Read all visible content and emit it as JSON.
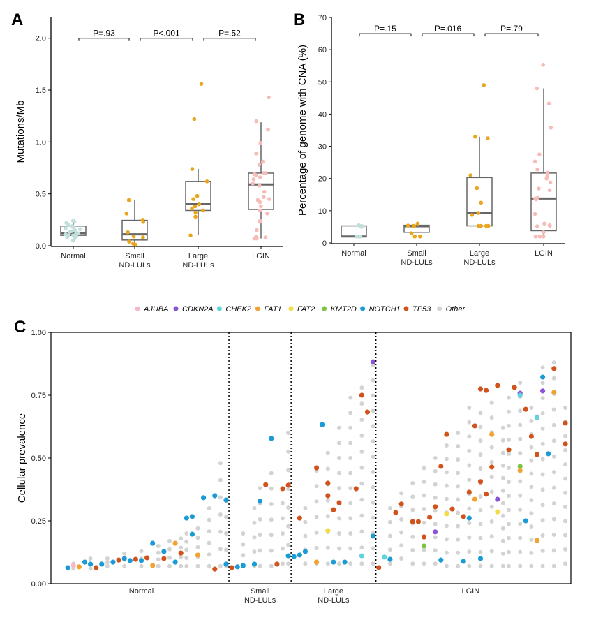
{
  "chart_data": [
    {
      "panel": "A",
      "type": "box",
      "ylabel": "Mutations/Mb",
      "ylim": [
        0,
        2.2
      ],
      "yticks": [
        0,
        0.5,
        1.0,
        1.5,
        2.0
      ],
      "ytick_labels": [
        "0.0",
        "0.5",
        "1.0",
        "1.5",
        "2.0"
      ],
      "categories": [
        "Normal",
        "Small\nND-LULs",
        "Large\nND-LULs",
        "LGIN"
      ],
      "pvalues": [
        "P=.93",
        "P<.001",
        "P=.52"
      ],
      "pvalue_y": 2.0,
      "colors": [
        "#c3dfdb",
        "#e9a51c",
        "#e9a51c",
        "#f6bcb8"
      ],
      "boxes": [
        {
          "lo": 0.06,
          "q1": 0.1,
          "med": 0.12,
          "q3": 0.19,
          "hi": 0.24
        },
        {
          "lo": 0.01,
          "q1": 0.055,
          "med": 0.11,
          "q3": 0.245,
          "hi": 0.44
        },
        {
          "lo": 0.1,
          "q1": 0.34,
          "med": 0.4,
          "q3": 0.62,
          "hi": 0.74
        },
        {
          "lo": 0.07,
          "q1": 0.35,
          "med": 0.59,
          "q3": 0.7,
          "hi": 1.19
        }
      ],
      "points": [
        [
          0.24,
          0.23,
          0.22,
          0.2,
          0.19,
          0.18,
          0.17,
          0.16,
          0.15,
          0.14,
          0.13,
          0.12,
          0.12,
          0.11,
          0.1,
          0.1,
          0.09,
          0.08,
          0.07,
          0.05
        ],
        [
          0.44,
          0.31,
          0.25,
          0.23,
          0.13,
          0.09,
          0.08,
          0.04,
          0.02,
          0.01
        ],
        [
          1.56,
          1.22,
          0.74,
          0.62,
          0.48,
          0.45,
          0.4,
          0.38,
          0.36,
          0.34,
          0.32,
          0.28,
          0.1
        ],
        [
          1.43,
          1.2,
          1.12,
          0.99,
          0.89,
          0.81,
          0.78,
          0.7,
          0.7,
          0.69,
          0.68,
          0.66,
          0.64,
          0.6,
          0.58,
          0.52,
          0.47,
          0.45,
          0.44,
          0.42,
          0.38,
          0.34,
          0.31,
          0.24,
          0.23,
          0.15,
          0.09,
          0.08,
          0.07,
          0.07
        ]
      ]
    },
    {
      "panel": "B",
      "type": "box",
      "ylabel": "Percentage of genome with CNA (%)",
      "ylim": [
        0,
        70
      ],
      "yticks": [
        0,
        10,
        20,
        30,
        40,
        50,
        60,
        70
      ],
      "ytick_labels": [
        "0",
        "10",
        "20",
        "30",
        "40",
        "50",
        "60",
        "70"
      ],
      "categories": [
        "Normal",
        "Small\nND-LULs",
        "Large\nND-LULs",
        "LGIN"
      ],
      "pvalues": [
        "P=.15",
        "P=.016",
        "P=.79"
      ],
      "pvalue_y": 65,
      "colors": [
        "#c3dfdb",
        "#e9a51c",
        "#e9a51c",
        "#f6bcb8"
      ],
      "boxes": [
        {
          "lo": 2,
          "q1": 2,
          "med": 2,
          "q3": 5.3,
          "hi": 5.3
        },
        {
          "lo": 3.3,
          "q1": 3.3,
          "med": 5.2,
          "q3": 5.5,
          "hi": 5.5
        },
        {
          "lo": 5.3,
          "q1": 5.3,
          "med": 9.2,
          "q3": 20.3,
          "hi": 33
        },
        {
          "lo": 2,
          "q1": 3.8,
          "med": 13.8,
          "q3": 21.7,
          "hi": 48
        }
      ],
      "points": [
        [
          5.5,
          5.3,
          5.2,
          5,
          2,
          2,
          2
        ],
        [
          6,
          5.4,
          5.3,
          5.2,
          3,
          2,
          2
        ],
        [
          49,
          33,
          32.5,
          21,
          17,
          12.5,
          9.3,
          8.7,
          5.3,
          5.3,
          5.3,
          5.3
        ],
        [
          55.3,
          48,
          43.3,
          35.8,
          27.5,
          25.3,
          22.8,
          21.8,
          20.7,
          20,
          18.8,
          16.9,
          16.4,
          14,
          13.8,
          13.5,
          9,
          6,
          5.5,
          5.3,
          5.2,
          3.3,
          2,
          2,
          2,
          2
        ]
      ]
    },
    {
      "panel": "C",
      "type": "scatter",
      "ylabel": "Cellular prevalence",
      "ylim": [
        0,
        1
      ],
      "yticks": [
        0,
        0.25,
        0.5,
        0.75,
        1
      ],
      "ytick_labels": [
        "0.00",
        "0.25",
        "0.50",
        "0.75",
        "1.00"
      ],
      "sample_count": 91,
      "groups": [
        {
          "label": "Normal",
          "from": 0,
          "to": 30
        },
        {
          "label": "Small\nND-LULs",
          "from": 30.5,
          "to": 41.5
        },
        {
          "label": "Large\nND-LULs",
          "from": 41.5,
          "to": 56.5
        },
        {
          "label": "LGIN",
          "from": 56.5,
          "to": 91
        }
      ],
      "legend": [
        {
          "gene": "AJUBA",
          "color": "#f6b8cc"
        },
        {
          "gene": "CDKN2A",
          "color": "#8a52d4"
        },
        {
          "gene": "CHEK2",
          "color": "#5fd4dc"
        },
        {
          "gene": "FAT1",
          "color": "#f0a232"
        },
        {
          "gene": "FAT2",
          "color": "#f2de44"
        },
        {
          "gene": "KMT2D",
          "color": "#7cc542"
        },
        {
          "gene": "NOTCH1",
          "color": "#1a9bd6"
        },
        {
          "gene": "TP53",
          "color": "#d2521c"
        },
        {
          "gene": "Other",
          "color": "#d3d3d3"
        }
      ],
      "other_columns": [
        [
          3,
          0.06,
          0.08,
          2
        ],
        [
          6,
          0.06,
          0.1,
          2
        ],
        [
          9,
          0.07,
          0.1,
          3
        ],
        [
          12,
          0.07,
          0.12,
          3
        ],
        [
          15,
          0.07,
          0.13,
          3
        ],
        [
          18,
          0.07,
          0.15,
          4
        ],
        [
          20,
          0.07,
          0.17,
          4
        ],
        [
          22,
          0.07,
          0.18,
          4
        ],
        [
          23,
          0.07,
          0.2,
          5
        ],
        [
          25,
          0.07,
          0.22,
          5
        ],
        [
          27,
          0.07,
          0.3,
          6
        ],
        [
          29,
          0.07,
          0.48,
          7
        ],
        [
          30,
          0.07,
          0.33,
          5
        ],
        [
          33,
          0.07,
          0.2,
          4
        ],
        [
          35,
          0.07,
          0.3,
          5
        ],
        [
          36,
          0.07,
          0.38,
          6
        ],
        [
          38,
          0.07,
          0.44,
          7
        ],
        [
          40,
          0.08,
          0.38,
          6
        ],
        [
          41,
          0.08,
          0.6,
          8
        ],
        [
          44,
          0.08,
          0.3,
          5
        ],
        [
          46,
          0.08,
          0.45,
          7
        ],
        [
          48,
          0.08,
          0.52,
          8
        ],
        [
          50,
          0.08,
          0.62,
          10
        ],
        [
          52,
          0.08,
          0.74,
          12
        ],
        [
          54,
          0.08,
          0.78,
          12
        ],
        [
          56,
          0.08,
          0.87,
          14
        ],
        [
          59,
          0.08,
          0.3,
          5
        ],
        [
          61,
          0.1,
          0.36,
          6
        ],
        [
          63,
          0.08,
          0.4,
          7
        ],
        [
          65,
          0.08,
          0.46,
          8
        ],
        [
          67,
          0.08,
          0.5,
          9
        ],
        [
          69,
          0.07,
          0.55,
          10
        ],
        [
          71,
          0.07,
          0.6,
          11
        ],
        [
          73,
          0.07,
          0.7,
          12
        ],
        [
          75,
          0.07,
          0.68,
          12
        ],
        [
          77,
          0.07,
          0.72,
          12
        ],
        [
          79,
          0.07,
          0.62,
          12
        ],
        [
          80,
          0.07,
          0.74,
          13
        ],
        [
          82,
          0.07,
          0.8,
          14
        ],
        [
          84,
          0.07,
          0.7,
          13
        ],
        [
          86,
          0.07,
          0.86,
          14
        ],
        [
          88,
          0.07,
          0.88,
          14
        ],
        [
          90,
          0.08,
          0.7,
          12
        ]
      ],
      "points": [
        [
          2,
          0.064,
          "NOTCH1"
        ],
        [
          3,
          0.072,
          "AJUBA"
        ],
        [
          4,
          0.067,
          "FAT1"
        ],
        [
          5,
          0.086,
          "NOTCH1"
        ],
        [
          6,
          0.078,
          "NOTCH1"
        ],
        [
          7,
          0.064,
          "TP53"
        ],
        [
          8,
          0.078,
          "NOTCH1"
        ],
        [
          10,
          0.086,
          "NOTCH1"
        ],
        [
          11,
          0.094,
          "TP53"
        ],
        [
          12,
          0.1,
          "NOTCH1"
        ],
        [
          13,
          0.092,
          "NOTCH1"
        ],
        [
          14,
          0.097,
          "TP53"
        ],
        [
          15,
          0.092,
          "NOTCH1"
        ],
        [
          16,
          0.103,
          "TP53"
        ],
        [
          17,
          0.161,
          "NOTCH1"
        ],
        [
          17,
          0.072,
          "FAT1"
        ],
        [
          19,
          0.128,
          "NOTCH1"
        ],
        [
          19,
          0.1,
          "TP53"
        ],
        [
          21,
          0.161,
          "FAT1"
        ],
        [
          21,
          0.086,
          "NOTCH1"
        ],
        [
          22,
          0.122,
          "TP53"
        ],
        [
          23,
          0.261,
          "NOTCH1"
        ],
        [
          24,
          0.267,
          "NOTCH1"
        ],
        [
          24,
          0.197,
          "NOTCH1"
        ],
        [
          25,
          0.114,
          "FAT1"
        ],
        [
          26,
          0.342,
          "NOTCH1"
        ],
        [
          28,
          0.35,
          "NOTCH1"
        ],
        [
          28,
          0.058,
          "TP53"
        ],
        [
          30,
          0.333,
          "NOTCH1"
        ],
        [
          30,
          0.078,
          "NOTCH1"
        ],
        [
          31,
          0.064,
          "TP53"
        ],
        [
          32,
          0.067,
          "NOTCH1"
        ],
        [
          33,
          0.072,
          "NOTCH1"
        ],
        [
          35,
          0.078,
          "NOTCH1"
        ],
        [
          36,
          0.328,
          "NOTCH1"
        ],
        [
          37,
          0.394,
          "TP53"
        ],
        [
          38,
          0.578,
          "NOTCH1"
        ],
        [
          40,
          0.378,
          "TP53"
        ],
        [
          41,
          0.392,
          "TP53"
        ],
        [
          41,
          0.111,
          "NOTCH1"
        ],
        [
          39,
          0.078,
          "TP53"
        ],
        [
          42,
          0.108,
          "NOTCH1"
        ],
        [
          43,
          0.114,
          "NOTCH1"
        ],
        [
          44,
          0.128,
          "NOTCH1"
        ],
        [
          43,
          0.261,
          "TP53"
        ],
        [
          46,
          0.086,
          "FAT1"
        ],
        [
          46,
          0.461,
          "TP53"
        ],
        [
          47,
          0.633,
          "NOTCH1"
        ],
        [
          48,
          0.211,
          "FAT2"
        ],
        [
          48,
          0.35,
          "TP53"
        ],
        [
          49,
          0.294,
          "TP53"
        ],
        [
          48,
          0.4,
          "TP53"
        ],
        [
          49,
          0.086,
          "NOTCH1"
        ],
        [
          50,
          0.322,
          "TP53"
        ],
        [
          51,
          0.086,
          "NOTCH1"
        ],
        [
          53,
          0.378,
          "TP53"
        ],
        [
          54,
          0.111,
          "CHEK2"
        ],
        [
          54,
          0.75,
          "TP53"
        ],
        [
          55,
          0.683,
          "TP53"
        ],
        [
          56,
          0.883,
          "CDKN2A"
        ],
        [
          56,
          0.189,
          "NOTCH1"
        ],
        [
          57,
          0.064,
          "TP53"
        ],
        [
          58,
          0.106,
          "CHEK2"
        ],
        [
          59,
          0.097,
          "NOTCH1"
        ],
        [
          60,
          0.283,
          "TP53"
        ],
        [
          61,
          0.317,
          "TP53"
        ],
        [
          63,
          0.247,
          "TP53"
        ],
        [
          64,
          0.247,
          "TP53"
        ],
        [
          65,
          0.186,
          "TP53"
        ],
        [
          65,
          0.15,
          "KMT2D"
        ],
        [
          66,
          0.264,
          "TP53"
        ],
        [
          67,
          0.306,
          "TP53"
        ],
        [
          67,
          0.206,
          "CDKN2A"
        ],
        [
          68,
          0.467,
          "TP53"
        ],
        [
          68,
          0.094,
          "NOTCH1"
        ],
        [
          69,
          0.278,
          "FAT2"
        ],
        [
          69,
          0.594,
          "TP53"
        ],
        [
          70,
          0.297,
          "TP53"
        ],
        [
          72,
          0.267,
          "TP53"
        ],
        [
          72,
          0.089,
          "NOTCH1"
        ],
        [
          73,
          0.364,
          "TP53"
        ],
        [
          73,
          0.261,
          "NOTCH1"
        ],
        [
          74,
          0.336,
          "FAT1"
        ],
        [
          74,
          0.628,
          "TP53"
        ],
        [
          75,
          0.775,
          "TP53"
        ],
        [
          75,
          0.406,
          "TP53"
        ],
        [
          75,
          0.1,
          "NOTCH1"
        ],
        [
          76,
          0.356,
          "TP53"
        ],
        [
          76,
          0.769,
          "TP53"
        ],
        [
          77,
          0.464,
          "TP53"
        ],
        [
          77,
          0.594,
          "FAT1"
        ],
        [
          78,
          0.789,
          "TP53"
        ],
        [
          78,
          0.336,
          "CDKN2A"
        ],
        [
          78,
          0.286,
          "FAT2"
        ],
        [
          80,
          0.533,
          "TP53"
        ],
        [
          81,
          0.781,
          "TP53"
        ],
        [
          82,
          0.758,
          "CDKN2A"
        ],
        [
          82,
          0.75,
          "CHEK2"
        ],
        [
          82,
          0.467,
          "KMT2D"
        ],
        [
          82,
          0.45,
          "FAT1"
        ],
        [
          83,
          0.694,
          "TP53"
        ],
        [
          83,
          0.25,
          "NOTCH1"
        ],
        [
          84,
          0.586,
          "TP53"
        ],
        [
          85,
          0.664,
          "AJUBA"
        ],
        [
          85,
          0.661,
          "CHEK2"
        ],
        [
          85,
          0.172,
          "FAT1"
        ],
        [
          85,
          0.514,
          "TP53"
        ],
        [
          86,
          0.822,
          "NOTCH1"
        ],
        [
          86,
          0.767,
          "CDKN2A"
        ],
        [
          87,
          0.517,
          "NOTCH1"
        ],
        [
          88,
          0.761,
          "FAT1"
        ],
        [
          88,
          0.856,
          "TP53"
        ],
        [
          90,
          0.639,
          "TP53"
        ],
        [
          90,
          0.556,
          "TP53"
        ]
      ]
    }
  ],
  "panel_labels": [
    "A",
    "B",
    "C"
  ]
}
